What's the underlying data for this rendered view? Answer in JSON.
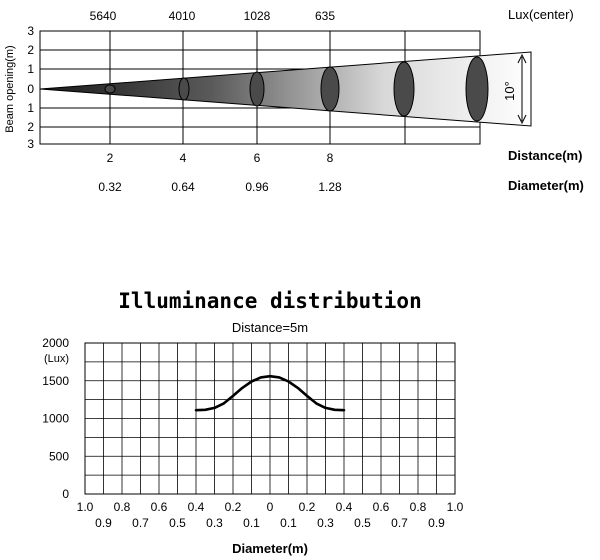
{
  "chart_data": [
    {
      "type": "diagram",
      "beam_angle": "10°",
      "right_labels": {
        "lux": "Lux(center)",
        "distance": "Distance(m)",
        "diameter": "Diameter(m)"
      },
      "ylabel": "Beam opening(m)",
      "y_ticks": [
        "3",
        "2",
        "1",
        "0",
        "1",
        "2",
        "3"
      ],
      "distances": [
        "2",
        "4",
        "6",
        "8"
      ],
      "lux_center": [
        "5640",
        "4010",
        "1028",
        "635"
      ],
      "diameters": [
        "0.32",
        "0.64",
        "0.96",
        "1.28"
      ]
    },
    {
      "type": "line",
      "title": "Illuminance distribution",
      "subtitle": "Distance=5m",
      "xlabel": "Diameter(m)",
      "ylabel": "(Lux)",
      "y_ticks": [
        "2000",
        "1500",
        "1000",
        "500",
        "0"
      ],
      "x_ticks_top": [
        "1.0",
        "0.8",
        "0.6",
        "0.4",
        "0.2",
        "0",
        "0.2",
        "0.4",
        "0.6",
        "0.8",
        "1.0"
      ],
      "x_ticks_bottom": [
        "0.9",
        "0.7",
        "0.5",
        "0.3",
        "0.1",
        "0.1",
        "0.3",
        "0.5",
        "0.7",
        "0.9"
      ],
      "xlim": [
        -1.0,
        1.0
      ],
      "ylim": [
        0,
        2000
      ],
      "grid": true,
      "x": [
        -0.4,
        -0.35,
        -0.3,
        -0.25,
        -0.2,
        -0.15,
        -0.1,
        -0.05,
        0,
        0.05,
        0.1,
        0.15,
        0.2,
        0.25,
        0.3,
        0.35,
        0.4
      ],
      "y": [
        1110,
        1115,
        1140,
        1200,
        1300,
        1405,
        1490,
        1545,
        1560,
        1545,
        1490,
        1405,
        1300,
        1200,
        1140,
        1115,
        1110
      ]
    }
  ]
}
